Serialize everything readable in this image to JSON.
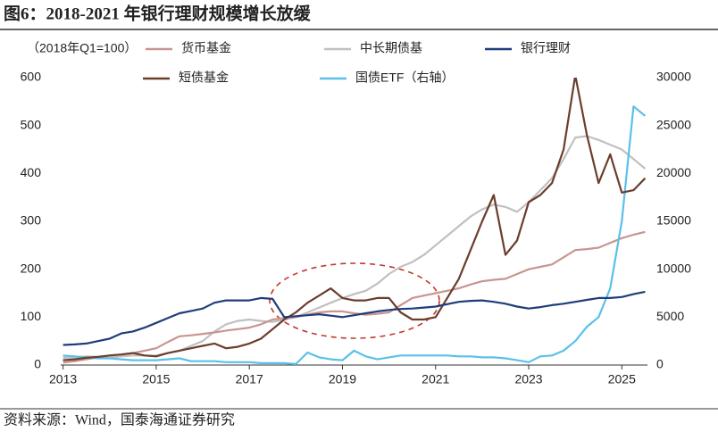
{
  "chart_data": {
    "type": "line",
    "title": "图6：2018-2021 年银行理财规模增长放缓",
    "subtitle": "（2018年Q1=100）",
    "source": "资料来源：Wind，国泰海通证券研究",
    "x": [
      2013,
      2013.25,
      2013.5,
      2013.75,
      2014,
      2014.25,
      2014.5,
      2014.75,
      2015,
      2015.25,
      2015.5,
      2015.75,
      2016,
      2016.25,
      2016.5,
      2016.75,
      2017,
      2017.25,
      2017.5,
      2017.75,
      2018,
      2018.25,
      2018.5,
      2018.75,
      2019,
      2019.25,
      2019.5,
      2019.75,
      2020,
      2020.25,
      2020.5,
      2020.75,
      2021,
      2021.25,
      2021.5,
      2021.75,
      2022,
      2022.25,
      2022.5,
      2022.75,
      2023,
      2023.25,
      2023.5,
      2023.75,
      2024,
      2024.25,
      2024.5,
      2024.75,
      2025,
      2025.25,
      2025.5
    ],
    "xlim": [
      2012.95,
      2025.55
    ],
    "xticks": [
      2013,
      2015,
      2017,
      2019,
      2021,
      2023,
      2025
    ],
    "ylim": [
      0,
      600
    ],
    "yticks": [
      0,
      100,
      200,
      300,
      400,
      500,
      600
    ],
    "y2lim": [
      0,
      30000
    ],
    "y2ticks": [
      0,
      5000,
      10000,
      15000,
      20000,
      25000,
      30000
    ],
    "series": [
      {
        "name": "货币基金",
        "color": "#c9958f",
        "values": [
          5,
          8,
          12,
          16,
          20,
          22,
          25,
          30,
          35,
          48,
          60,
          62,
          65,
          68,
          72,
          75,
          78,
          85,
          95,
          98,
          100,
          105,
          110,
          112,
          112,
          108,
          105,
          107,
          110,
          125,
          140,
          145,
          150,
          155,
          160,
          168,
          175,
          178,
          180,
          190,
          200,
          205,
          210,
          225,
          240,
          242,
          245,
          255,
          265,
          272,
          278
        ]
      },
      {
        "name": "中长期债基",
        "color": "#c0c0c0",
        "values": [
          15,
          16,
          18,
          17,
          15,
          18,
          20,
          20,
          20,
          25,
          30,
          40,
          50,
          70,
          85,
          92,
          95,
          92,
          90,
          95,
          100,
          110,
          120,
          130,
          140,
          148,
          155,
          170,
          190,
          205,
          215,
          230,
          250,
          270,
          290,
          310,
          325,
          335,
          330,
          320,
          340,
          365,
          390,
          430,
          475,
          478,
          470,
          460,
          450,
          430,
          410
        ]
      },
      {
        "name": "银行理财",
        "color": "#1f3d7a",
        "values": [
          42,
          43,
          45,
          50,
          55,
          66,
          70,
          78,
          88,
          98,
          108,
          113,
          118,
          130,
          135,
          135,
          135,
          140,
          138,
          100,
          102,
          104,
          106,
          103,
          100,
          104,
          108,
          112,
          115,
          117,
          118,
          120,
          122,
          127,
          132,
          134,
          135,
          132,
          128,
          122,
          118,
          121,
          125,
          128,
          132,
          136,
          140,
          140,
          142,
          148,
          153
        ]
      },
      {
        "name": "短债基金",
        "color": "#6b3d2c",
        "values": [
          10,
          12,
          15,
          17,
          20,
          22,
          25,
          20,
          18,
          25,
          30,
          35,
          40,
          45,
          35,
          38,
          45,
          55,
          75,
          95,
          110,
          130,
          145,
          160,
          140,
          135,
          135,
          140,
          140,
          110,
          95,
          95,
          100,
          140,
          180,
          240,
          300,
          355,
          230,
          260,
          340,
          355,
          380,
          450,
          605,
          480,
          380,
          440,
          360,
          365,
          390
        ]
      },
      {
        "name": "国债ETF（右轴）",
        "color": "#5bc0e8",
        "axis": "y2",
        "values": [
          1000,
          900,
          800,
          700,
          700,
          600,
          500,
          500,
          500,
          600,
          700,
          400,
          400,
          400,
          300,
          300,
          300,
          200,
          200,
          200,
          100,
          1300,
          800,
          600,
          500,
          1500,
          900,
          600,
          800,
          1000,
          1000,
          1000,
          1000,
          1000,
          900,
          900,
          800,
          800,
          700,
          500,
          300,
          900,
          1000,
          1500,
          2500,
          4000,
          5000,
          8000,
          15000,
          27000,
          26000
        ]
      }
    ]
  }
}
